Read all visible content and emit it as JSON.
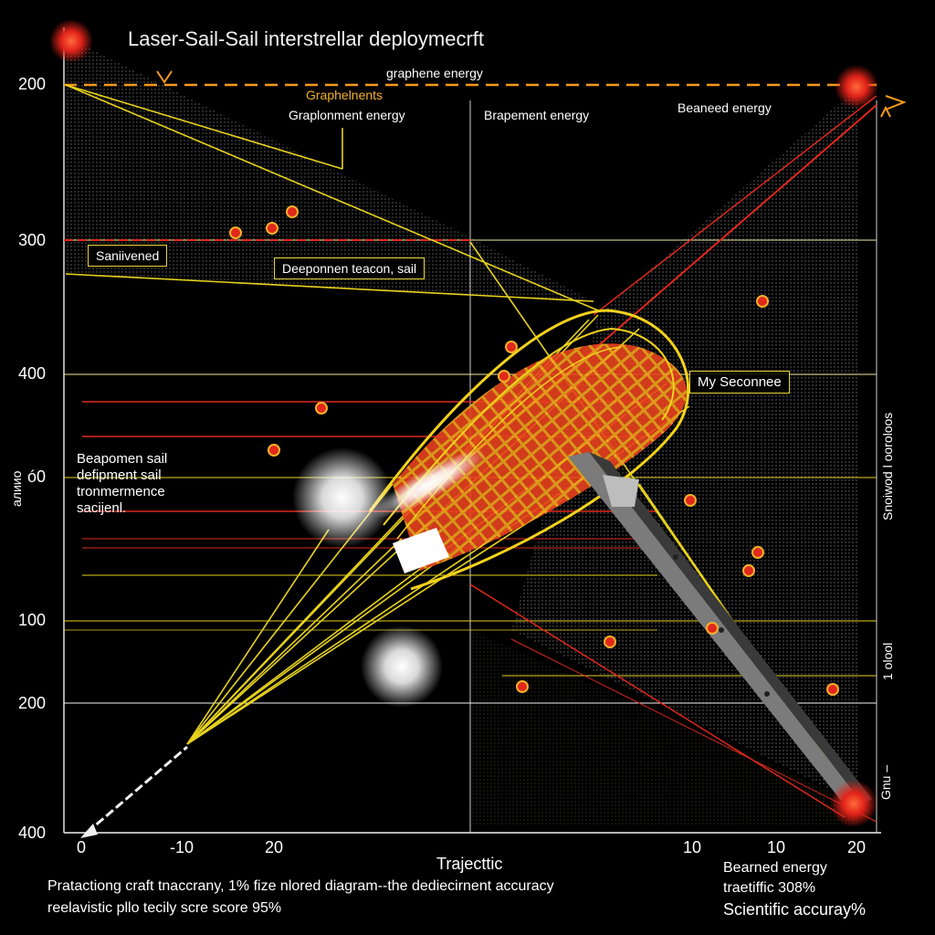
{
  "title": "Laser-Sail-Sail interstrellar deploymecrft",
  "y_ticks": [
    "200",
    "300",
    "400",
    "ó0",
    "100",
    "200",
    "400"
  ],
  "x_ticks": [
    "0",
    "-10",
    "20",
    "10",
    "10",
    "20"
  ],
  "x_axis_label": "Trajecttic",
  "right_side_labels": [
    "Snoiwod l ooroloos",
    "1 olool",
    "Gnu –"
  ],
  "left_side_label": "алиио",
  "labels": {
    "graphene_energy": "graphene energy",
    "graphelents": "Graphelnents",
    "graplonment_energy": "Graplonment energy",
    "brapement_energy": "Brapement energy",
    "beaned_energy": "Beaneed energy",
    "sanivened": "Saniivened",
    "deeponmen_sail": "Deeponnen teacon, sail",
    "my_seconnee": "My Seconnee",
    "beapomen_block": [
      "Beapomen sail",
      "defipment sail",
      "tronmermence",
      "sacijenl."
    ]
  },
  "footer": {
    "line1": "Pratactiong craft tnaccrany, 1% fize nlored diagram--the dediecirnent accuracy",
    "line2": "reelavistic pllo tecily scre score 95%",
    "right1": "Bearned energy",
    "right2": "traetiffic 308%",
    "right3": "Scientific accuray%"
  },
  "colors": {
    "background": "#000000",
    "grid": "#e7d21e",
    "beam": "#e0281c",
    "sail": "#f3c318",
    "accent": "#f39a1c"
  },
  "icons": [
    "laser-source-icon",
    "spacecraft-icon",
    "debris-pod-icon"
  ]
}
